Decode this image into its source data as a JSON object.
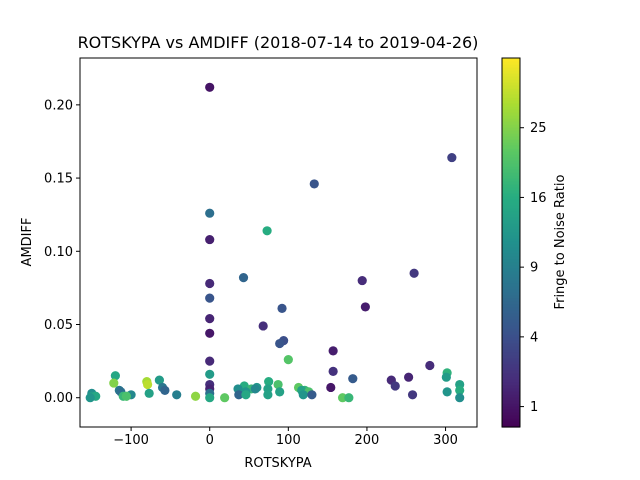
{
  "chart_data": {
    "type": "scatter",
    "title": "ROTSKYPA vs AMDIFF (2018-07-14 to 2019-04-26)",
    "xlabel": "ROTSKYPA",
    "ylabel": "AMDIFF",
    "xlim": [
      -165,
      340
    ],
    "ylim": [
      -0.02,
      0.232
    ],
    "x_ticks": [
      -100,
      0,
      100,
      200,
      300
    ],
    "x_tick_labels": [
      "−100",
      "0",
      "100",
      "200",
      "300"
    ],
    "y_ticks": [
      0.0,
      0.05,
      0.1,
      0.15,
      0.2
    ],
    "y_tick_labels": [
      "0.00",
      "0.05",
      "0.10",
      "0.15",
      "0.20"
    ],
    "grid": false,
    "colorbar": {
      "label": "Fringe to Noise Ratio",
      "colormap": "viridis",
      "scale": "sqrt",
      "range": [
        0.5,
        36
      ],
      "ticks": [
        1,
        4,
        9,
        16,
        25
      ],
      "tick_labels": [
        "1",
        "4",
        "9",
        "16",
        "25"
      ]
    },
    "points": [
      {
        "x": 0,
        "y": 0.212,
        "c": 1
      },
      {
        "x": 0,
        "y": 0.126,
        "c": 7
      },
      {
        "x": 0,
        "y": 0.108,
        "c": 1.4
      },
      {
        "x": 0,
        "y": 0.078,
        "c": 1.8
      },
      {
        "x": 0,
        "y": 0.068,
        "c": 4.5
      },
      {
        "x": 0,
        "y": 0.054,
        "c": 1.6
      },
      {
        "x": 0,
        "y": 0.044,
        "c": 1.1
      },
      {
        "x": 0,
        "y": 0.025,
        "c": 1.8
      },
      {
        "x": 0,
        "y": 0.016,
        "c": 13
      },
      {
        "x": 0,
        "y": 0.009,
        "c": 2
      },
      {
        "x": 0,
        "y": 0.006,
        "c": 1.5
      },
      {
        "x": 0,
        "y": 0.003,
        "c": 7
      },
      {
        "x": 0,
        "y": 0.0,
        "c": 15
      },
      {
        "x": 308,
        "y": 0.164,
        "c": 3
      },
      {
        "x": 133,
        "y": 0.146,
        "c": 4.5
      },
      {
        "x": 73,
        "y": 0.114,
        "c": 16
      },
      {
        "x": 260,
        "y": 0.085,
        "c": 2.5
      },
      {
        "x": 43,
        "y": 0.082,
        "c": 6
      },
      {
        "x": 194,
        "y": 0.08,
        "c": 1.9
      },
      {
        "x": 198,
        "y": 0.062,
        "c": 1.3
      },
      {
        "x": 92,
        "y": 0.061,
        "c": 4.5
      },
      {
        "x": 68,
        "y": 0.049,
        "c": 2
      },
      {
        "x": 94,
        "y": 0.039,
        "c": 4
      },
      {
        "x": 89,
        "y": 0.037,
        "c": 4.5
      },
      {
        "x": 157,
        "y": 0.032,
        "c": 1.3
      },
      {
        "x": 100,
        "y": 0.026,
        "c": 21
      },
      {
        "x": 280,
        "y": 0.022,
        "c": 1.9
      },
      {
        "x": 157,
        "y": 0.018,
        "c": 2.2
      },
      {
        "x": 302,
        "y": 0.017,
        "c": 17
      },
      {
        "x": -120,
        "y": 0.015,
        "c": 15
      },
      {
        "x": 301,
        "y": 0.014,
        "c": 13
      },
      {
        "x": 253,
        "y": 0.014,
        "c": 1.6
      },
      {
        "x": 182,
        "y": 0.013,
        "c": 5
      },
      {
        "x": 231,
        "y": 0.012,
        "c": 1.8
      },
      {
        "x": -64,
        "y": 0.012,
        "c": 13
      },
      {
        "x": -80,
        "y": 0.011,
        "c": 28
      },
      {
        "x": 75,
        "y": 0.011,
        "c": 16
      },
      {
        "x": -122,
        "y": 0.01,
        "c": 25
      },
      {
        "x": -79,
        "y": 0.009,
        "c": 30
      },
      {
        "x": 318,
        "y": 0.009,
        "c": 14
      },
      {
        "x": 87,
        "y": 0.009,
        "c": 20
      },
      {
        "x": 44,
        "y": 0.008,
        "c": 16
      },
      {
        "x": 236,
        "y": 0.008,
        "c": 2.5
      },
      {
        "x": -60,
        "y": 0.007,
        "c": 8
      },
      {
        "x": 60,
        "y": 0.007,
        "c": 12
      },
      {
        "x": 154,
        "y": 0.007,
        "c": 1.1
      },
      {
        "x": 113,
        "y": 0.007,
        "c": 22
      },
      {
        "x": 36,
        "y": 0.006,
        "c": 11
      },
      {
        "x": 74,
        "y": 0.006,
        "c": 14
      },
      {
        "x": 53,
        "y": 0.006,
        "c": 18
      },
      {
        "x": 58,
        "y": 0.006,
        "c": 10
      },
      {
        "x": 121,
        "y": 0.005,
        "c": 18
      },
      {
        "x": -57,
        "y": 0.005,
        "c": 6
      },
      {
        "x": 117,
        "y": 0.005,
        "c": 14
      },
      {
        "x": -115,
        "y": 0.005,
        "c": 8
      },
      {
        "x": 318,
        "y": 0.005,
        "c": 16
      },
      {
        "x": -113,
        "y": 0.004,
        "c": 7
      },
      {
        "x": 302,
        "y": 0.004,
        "c": 12
      },
      {
        "x": 89,
        "y": 0.004,
        "c": 14
      },
      {
        "x": 126,
        "y": 0.004,
        "c": 20
      },
      {
        "x": 46,
        "y": 0.004,
        "c": 12
      },
      {
        "x": -150,
        "y": 0.003,
        "c": 11
      },
      {
        "x": -77,
        "y": 0.003,
        "c": 14
      },
      {
        "x": -42,
        "y": 0.002,
        "c": 9
      },
      {
        "x": 37,
        "y": 0.002,
        "c": 6
      },
      {
        "x": 119,
        "y": 0.002,
        "c": 12
      },
      {
        "x": 130,
        "y": 0.002,
        "c": 5
      },
      {
        "x": 74,
        "y": 0.002,
        "c": 14
      },
      {
        "x": -100,
        "y": 0.002,
        "c": 10
      },
      {
        "x": 46,
        "y": 0.002,
        "c": 15
      },
      {
        "x": 258,
        "y": 0.002,
        "c": 2.5
      },
      {
        "x": -150,
        "y": 0.001,
        "c": 13
      },
      {
        "x": -145,
        "y": 0.001,
        "c": 15
      },
      {
        "x": -18,
        "y": 0.001,
        "c": 26
      },
      {
        "x": -110,
        "y": 0.001,
        "c": 18
      },
      {
        "x": -106,
        "y": 0.001,
        "c": 20
      },
      {
        "x": -152,
        "y": 0.0,
        "c": 12
      },
      {
        "x": 19,
        "y": 0.0,
        "c": 22
      },
      {
        "x": 169,
        "y": 0.0,
        "c": 22
      },
      {
        "x": 177,
        "y": 0.0,
        "c": 18
      },
      {
        "x": 318,
        "y": 0.0,
        "c": 11
      }
    ]
  }
}
